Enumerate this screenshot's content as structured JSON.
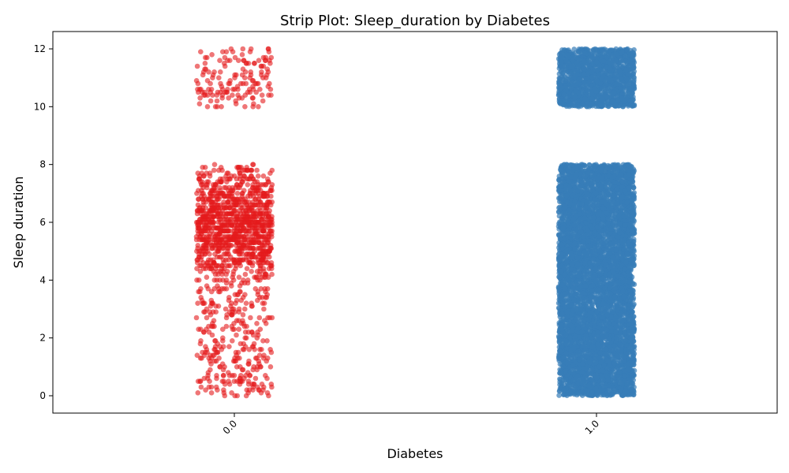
{
  "chart_data": {
    "type": "scatter",
    "subtype": "strip",
    "title": "Strip Plot: Sleep_duration by Diabetes",
    "xlabel": "Diabetes",
    "ylabel": "Sleep duration",
    "categories": [
      "0.0",
      "1.0"
    ],
    "yticks": [
      "0",
      "2",
      "4",
      "6",
      "8",
      "10",
      "12"
    ],
    "ylim": [
      -0.6,
      12.6
    ],
    "grid": false,
    "legend": "none",
    "series": [
      {
        "category": "0.0",
        "color": "#e41a1c",
        "ranges": [
          [
            0,
            8
          ],
          [
            10,
            12
          ]
        ],
        "point_count_estimate": [
          1400,
          150
        ],
        "density": "sparse"
      },
      {
        "category": "1.0",
        "color": "#377eb8",
        "ranges": [
          [
            0,
            8
          ],
          [
            10,
            12
          ]
        ],
        "point_count_estimate": [
          6000,
          1500
        ],
        "density": "dense"
      }
    ]
  }
}
